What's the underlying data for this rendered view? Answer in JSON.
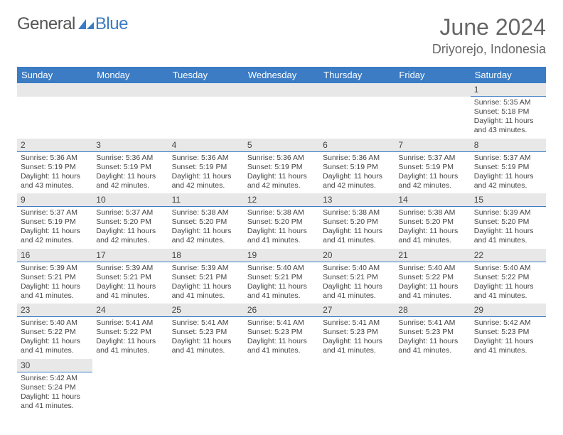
{
  "logo": {
    "part1": "General",
    "part2": "Blue"
  },
  "title": "June 2024",
  "location": "Driyorejo, Indonesia",
  "colors": {
    "header_bg": "#3b7cc4",
    "header_text": "#ffffff",
    "daynum_bg": "#e8e8e8",
    "daynum_border": "#3b7cc4",
    "body_text": "#444444",
    "title_text": "#666666",
    "logo_gray": "#555555",
    "logo_blue": "#3b7cc4"
  },
  "weekdays": [
    "Sunday",
    "Monday",
    "Tuesday",
    "Wednesday",
    "Thursday",
    "Friday",
    "Saturday"
  ],
  "weeks": [
    [
      null,
      null,
      null,
      null,
      null,
      null,
      {
        "n": "1",
        "sr": "Sunrise: 5:35 AM",
        "ss": "Sunset: 5:18 PM",
        "dl": "Daylight: 11 hours and 43 minutes."
      }
    ],
    [
      {
        "n": "2",
        "sr": "Sunrise: 5:36 AM",
        "ss": "Sunset: 5:19 PM",
        "dl": "Daylight: 11 hours and 43 minutes."
      },
      {
        "n": "3",
        "sr": "Sunrise: 5:36 AM",
        "ss": "Sunset: 5:19 PM",
        "dl": "Daylight: 11 hours and 42 minutes."
      },
      {
        "n": "4",
        "sr": "Sunrise: 5:36 AM",
        "ss": "Sunset: 5:19 PM",
        "dl": "Daylight: 11 hours and 42 minutes."
      },
      {
        "n": "5",
        "sr": "Sunrise: 5:36 AM",
        "ss": "Sunset: 5:19 PM",
        "dl": "Daylight: 11 hours and 42 minutes."
      },
      {
        "n": "6",
        "sr": "Sunrise: 5:36 AM",
        "ss": "Sunset: 5:19 PM",
        "dl": "Daylight: 11 hours and 42 minutes."
      },
      {
        "n": "7",
        "sr": "Sunrise: 5:37 AM",
        "ss": "Sunset: 5:19 PM",
        "dl": "Daylight: 11 hours and 42 minutes."
      },
      {
        "n": "8",
        "sr": "Sunrise: 5:37 AM",
        "ss": "Sunset: 5:19 PM",
        "dl": "Daylight: 11 hours and 42 minutes."
      }
    ],
    [
      {
        "n": "9",
        "sr": "Sunrise: 5:37 AM",
        "ss": "Sunset: 5:19 PM",
        "dl": "Daylight: 11 hours and 42 minutes."
      },
      {
        "n": "10",
        "sr": "Sunrise: 5:37 AM",
        "ss": "Sunset: 5:20 PM",
        "dl": "Daylight: 11 hours and 42 minutes."
      },
      {
        "n": "11",
        "sr": "Sunrise: 5:38 AM",
        "ss": "Sunset: 5:20 PM",
        "dl": "Daylight: 11 hours and 42 minutes."
      },
      {
        "n": "12",
        "sr": "Sunrise: 5:38 AM",
        "ss": "Sunset: 5:20 PM",
        "dl": "Daylight: 11 hours and 41 minutes."
      },
      {
        "n": "13",
        "sr": "Sunrise: 5:38 AM",
        "ss": "Sunset: 5:20 PM",
        "dl": "Daylight: 11 hours and 41 minutes."
      },
      {
        "n": "14",
        "sr": "Sunrise: 5:38 AM",
        "ss": "Sunset: 5:20 PM",
        "dl": "Daylight: 11 hours and 41 minutes."
      },
      {
        "n": "15",
        "sr": "Sunrise: 5:39 AM",
        "ss": "Sunset: 5:20 PM",
        "dl": "Daylight: 11 hours and 41 minutes."
      }
    ],
    [
      {
        "n": "16",
        "sr": "Sunrise: 5:39 AM",
        "ss": "Sunset: 5:21 PM",
        "dl": "Daylight: 11 hours and 41 minutes."
      },
      {
        "n": "17",
        "sr": "Sunrise: 5:39 AM",
        "ss": "Sunset: 5:21 PM",
        "dl": "Daylight: 11 hours and 41 minutes."
      },
      {
        "n": "18",
        "sr": "Sunrise: 5:39 AM",
        "ss": "Sunset: 5:21 PM",
        "dl": "Daylight: 11 hours and 41 minutes."
      },
      {
        "n": "19",
        "sr": "Sunrise: 5:40 AM",
        "ss": "Sunset: 5:21 PM",
        "dl": "Daylight: 11 hours and 41 minutes."
      },
      {
        "n": "20",
        "sr": "Sunrise: 5:40 AM",
        "ss": "Sunset: 5:21 PM",
        "dl": "Daylight: 11 hours and 41 minutes."
      },
      {
        "n": "21",
        "sr": "Sunrise: 5:40 AM",
        "ss": "Sunset: 5:22 PM",
        "dl": "Daylight: 11 hours and 41 minutes."
      },
      {
        "n": "22",
        "sr": "Sunrise: 5:40 AM",
        "ss": "Sunset: 5:22 PM",
        "dl": "Daylight: 11 hours and 41 minutes."
      }
    ],
    [
      {
        "n": "23",
        "sr": "Sunrise: 5:40 AM",
        "ss": "Sunset: 5:22 PM",
        "dl": "Daylight: 11 hours and 41 minutes."
      },
      {
        "n": "24",
        "sr": "Sunrise: 5:41 AM",
        "ss": "Sunset: 5:22 PM",
        "dl": "Daylight: 11 hours and 41 minutes."
      },
      {
        "n": "25",
        "sr": "Sunrise: 5:41 AM",
        "ss": "Sunset: 5:23 PM",
        "dl": "Daylight: 11 hours and 41 minutes."
      },
      {
        "n": "26",
        "sr": "Sunrise: 5:41 AM",
        "ss": "Sunset: 5:23 PM",
        "dl": "Daylight: 11 hours and 41 minutes."
      },
      {
        "n": "27",
        "sr": "Sunrise: 5:41 AM",
        "ss": "Sunset: 5:23 PM",
        "dl": "Daylight: 11 hours and 41 minutes."
      },
      {
        "n": "28",
        "sr": "Sunrise: 5:41 AM",
        "ss": "Sunset: 5:23 PM",
        "dl": "Daylight: 11 hours and 41 minutes."
      },
      {
        "n": "29",
        "sr": "Sunrise: 5:42 AM",
        "ss": "Sunset: 5:23 PM",
        "dl": "Daylight: 11 hours and 41 minutes."
      }
    ],
    [
      {
        "n": "30",
        "sr": "Sunrise: 5:42 AM",
        "ss": "Sunset: 5:24 PM",
        "dl": "Daylight: 11 hours and 41 minutes."
      },
      null,
      null,
      null,
      null,
      null,
      null
    ]
  ]
}
